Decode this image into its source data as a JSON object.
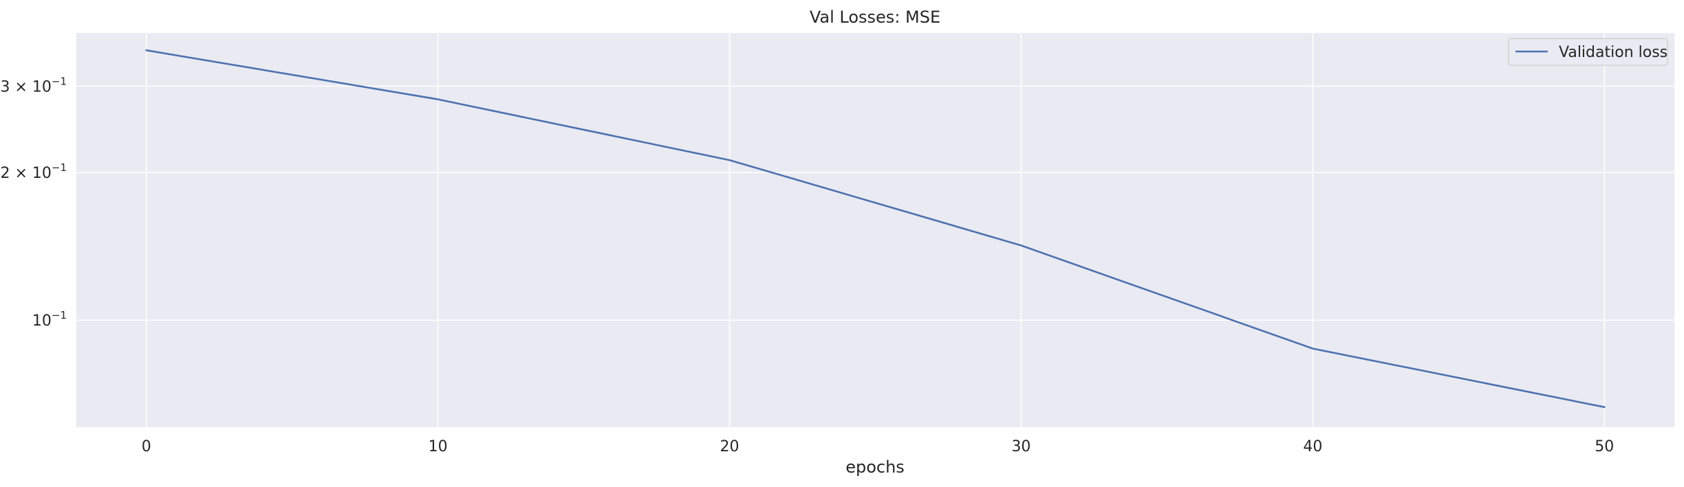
{
  "chart_data": {
    "type": "line",
    "title": "Val Losses:  MSE",
    "xlabel": "epochs",
    "ylabel": "",
    "yscale": "log",
    "x": [
      0,
      10,
      20,
      30,
      40,
      50
    ],
    "series": [
      {
        "name": "Validation loss",
        "values": [
          0.355,
          0.282,
          0.212,
          0.142,
          0.0875,
          0.0665
        ],
        "color": "#4c72b0"
      }
    ],
    "xlim": [
      -2.4,
      52.4
    ],
    "ylim": [
      0.0605,
      0.385
    ],
    "xticks": [
      {
        "value": 0,
        "label": "0"
      },
      {
        "value": 10,
        "label": "10"
      },
      {
        "value": 20,
        "label": "20"
      },
      {
        "value": 30,
        "label": "30"
      },
      {
        "value": 40,
        "label": "40"
      },
      {
        "value": 50,
        "label": "50"
      }
    ],
    "yticks": [
      {
        "value": 0.1,
        "base": "10",
        "exp": "−1",
        "coef": ""
      },
      {
        "value": 0.2,
        "base": "10",
        "exp": "−1",
        "coef": "2 × "
      },
      {
        "value": 0.3,
        "base": "10",
        "exp": "−1",
        "coef": "3 × "
      }
    ],
    "grid": true,
    "legend_position": "top-right",
    "background": "#eaeaf2",
    "grid_color": "#ffffff"
  }
}
